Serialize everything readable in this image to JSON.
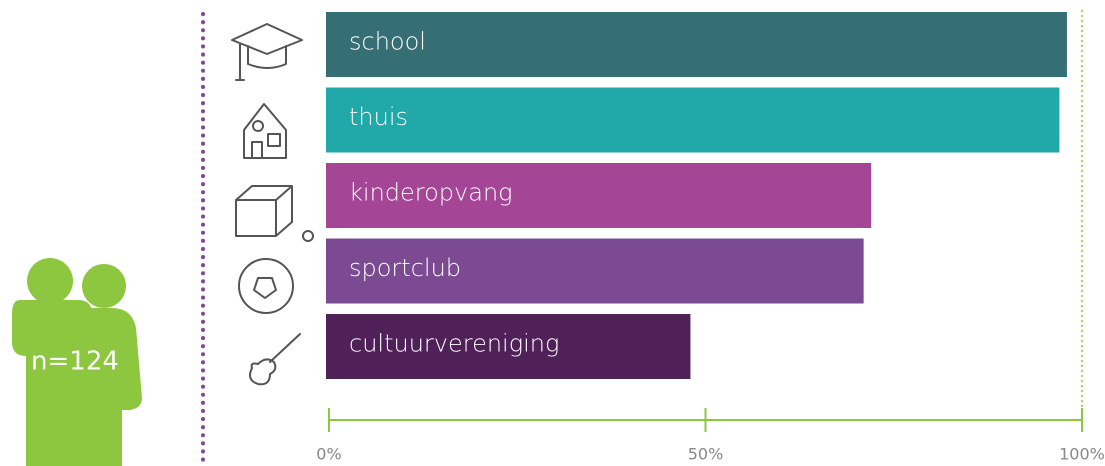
{
  "chart_data": {
    "type": "bar",
    "orientation": "horizontal",
    "annotation": "n=124",
    "categories": [
      "school",
      "thuis",
      "kinderopvang",
      "sportclub",
      "cultuurvereniging"
    ],
    "values": [
      98,
      97,
      72,
      71,
      48
    ],
    "colors": [
      "#356e75",
      "#21a8a8",
      "#a44596",
      "#7b4a93",
      "#4f2158"
    ],
    "xlim": [
      0,
      100
    ],
    "xticks": [
      {
        "value": 0,
        "label": "0%"
      },
      {
        "value": 50,
        "label": "50%"
      },
      {
        "value": 100,
        "label": "100%"
      }
    ],
    "axis_color": "#8dc63f"
  }
}
